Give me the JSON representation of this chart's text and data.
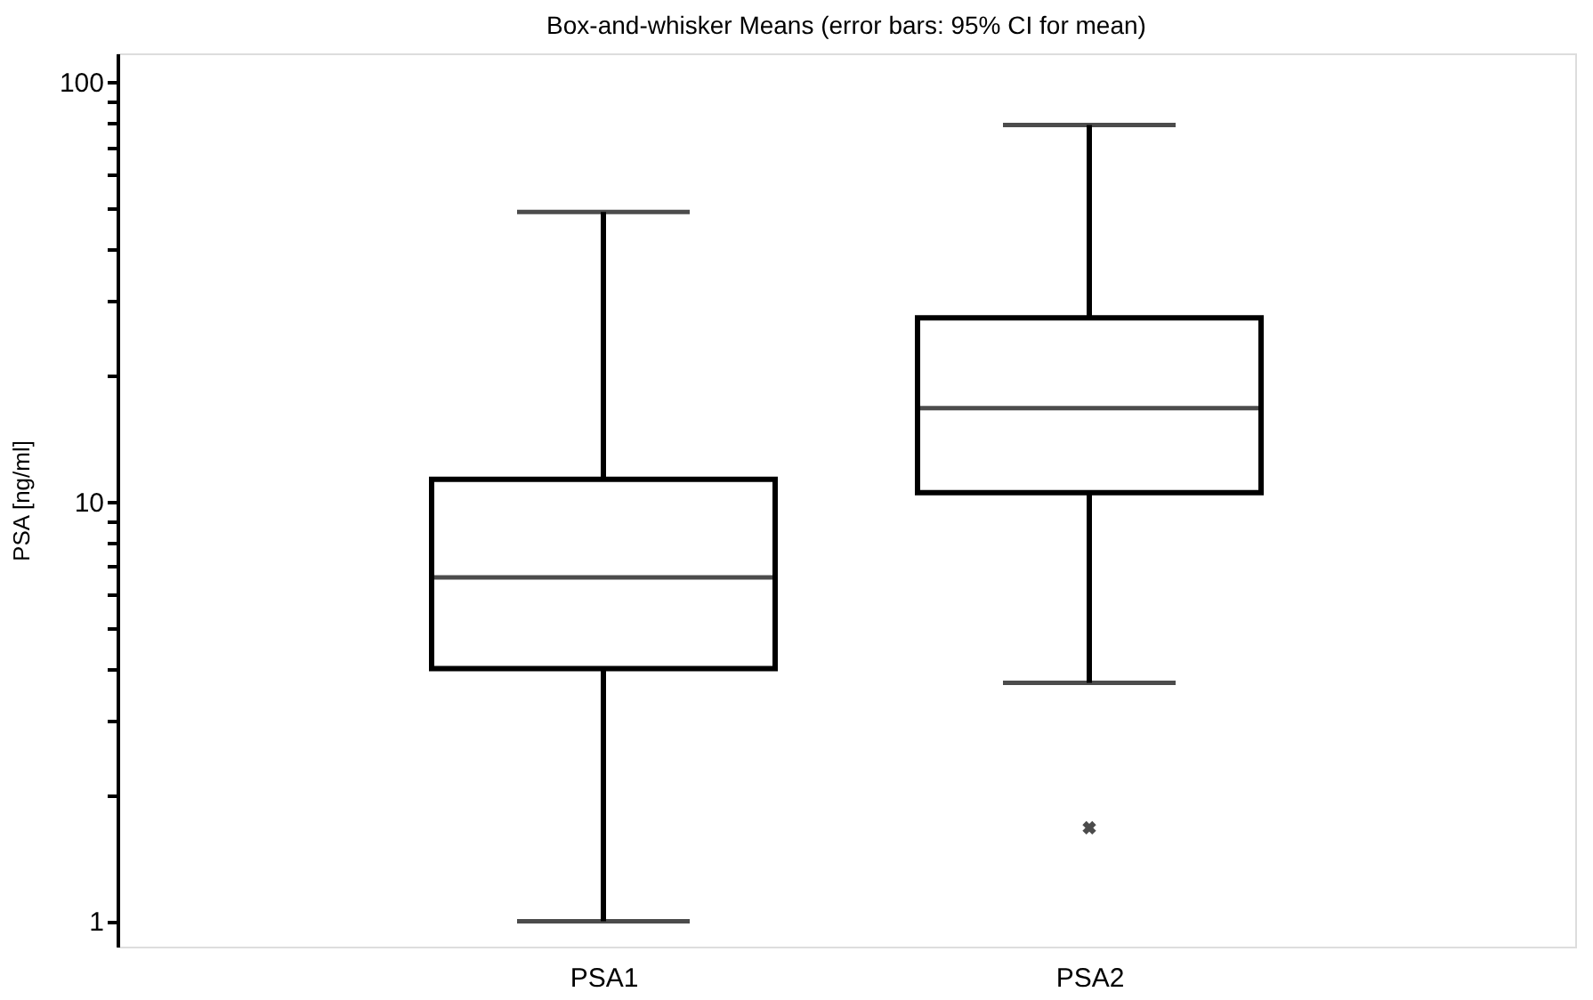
{
  "chart_data": {
    "type": "box",
    "title": "Box-and-whisker Means (error bars: 95% CI for mean)",
    "ylabel": "PSA [ng/ml]",
    "categories": [
      "PSA1",
      "PSA2"
    ],
    "boxes": [
      {
        "low": 1,
        "q1": 4.0,
        "median": 6.6,
        "q3": 11.3,
        "high": 49
      },
      {
        "low": 3.7,
        "q1": 10.5,
        "median": 16.7,
        "q3": 27.4,
        "high": 79,
        "outliers": [
          1.67
        ]
      }
    ],
    "log": true,
    "grid": false,
    "ylim": [
      0.87,
      117
    ],
    "yticks": [
      1,
      {
        "value": 2,
        "label": null
      },
      {
        "value": 3,
        "label": null
      },
      {
        "value": 4,
        "label": null
      },
      {
        "value": 5,
        "label": null
      },
      {
        "value": 6,
        "label": null
      },
      {
        "value": 7,
        "label": null
      },
      {
        "value": 8,
        "label": null
      },
      {
        "value": 9,
        "label": null
      },
      10,
      {
        "value": 20,
        "label": null
      },
      {
        "value": 30,
        "label": null
      },
      {
        "value": 40,
        "label": null
      },
      {
        "value": 50,
        "label": null
      },
      {
        "value": 60,
        "label": null
      },
      {
        "value": 70,
        "label": null
      },
      {
        "value": 80,
        "label": null
      },
      {
        "value": 90,
        "label": null
      },
      100
    ]
  }
}
